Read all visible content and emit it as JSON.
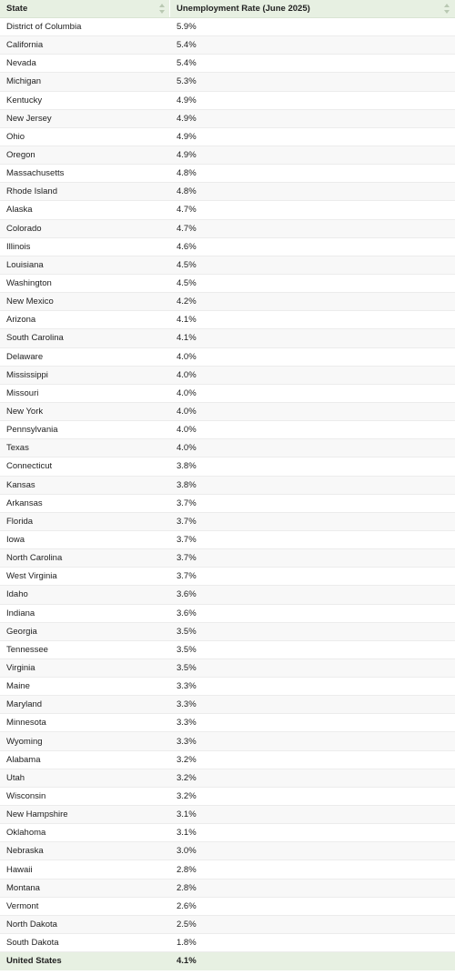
{
  "table": {
    "headers": {
      "state": "State",
      "rate": "Unemployment Rate (June 2025)"
    },
    "rows": [
      {
        "state": "District of Columbia",
        "rate": "5.9%"
      },
      {
        "state": "California",
        "rate": "5.4%"
      },
      {
        "state": "Nevada",
        "rate": "5.4%"
      },
      {
        "state": "Michigan",
        "rate": "5.3%"
      },
      {
        "state": "Kentucky",
        "rate": "4.9%"
      },
      {
        "state": "New Jersey",
        "rate": "4.9%"
      },
      {
        "state": "Ohio",
        "rate": "4.9%"
      },
      {
        "state": "Oregon",
        "rate": "4.9%"
      },
      {
        "state": "Massachusetts",
        "rate": "4.8%"
      },
      {
        "state": "Rhode Island",
        "rate": "4.8%"
      },
      {
        "state": "Alaska",
        "rate": "4.7%"
      },
      {
        "state": "Colorado",
        "rate": "4.7%"
      },
      {
        "state": "Illinois",
        "rate": "4.6%"
      },
      {
        "state": "Louisiana",
        "rate": "4.5%"
      },
      {
        "state": "Washington",
        "rate": "4.5%"
      },
      {
        "state": "New Mexico",
        "rate": "4.2%"
      },
      {
        "state": "Arizona",
        "rate": "4.1%"
      },
      {
        "state": "South Carolina",
        "rate": "4.1%"
      },
      {
        "state": "Delaware",
        "rate": "4.0%"
      },
      {
        "state": "Mississippi",
        "rate": "4.0%"
      },
      {
        "state": "Missouri",
        "rate": "4.0%"
      },
      {
        "state": "New York",
        "rate": "4.0%"
      },
      {
        "state": "Pennsylvania",
        "rate": "4.0%"
      },
      {
        "state": "Texas",
        "rate": "4.0%"
      },
      {
        "state": "Connecticut",
        "rate": "3.8%"
      },
      {
        "state": "Kansas",
        "rate": "3.8%"
      },
      {
        "state": "Arkansas",
        "rate": "3.7%"
      },
      {
        "state": "Florida",
        "rate": "3.7%"
      },
      {
        "state": "Iowa",
        "rate": "3.7%"
      },
      {
        "state": "North Carolina",
        "rate": "3.7%"
      },
      {
        "state": "West Virginia",
        "rate": "3.7%"
      },
      {
        "state": "Idaho",
        "rate": "3.6%"
      },
      {
        "state": "Indiana",
        "rate": "3.6%"
      },
      {
        "state": "Georgia",
        "rate": "3.5%"
      },
      {
        "state": "Tennessee",
        "rate": "3.5%"
      },
      {
        "state": "Virginia",
        "rate": "3.5%"
      },
      {
        "state": "Maine",
        "rate": "3.3%"
      },
      {
        "state": "Maryland",
        "rate": "3.3%"
      },
      {
        "state": "Minnesota",
        "rate": "3.3%"
      },
      {
        "state": "Wyoming",
        "rate": "3.3%"
      },
      {
        "state": "Alabama",
        "rate": "3.2%"
      },
      {
        "state": "Utah",
        "rate": "3.2%"
      },
      {
        "state": "Wisconsin",
        "rate": "3.2%"
      },
      {
        "state": "New Hampshire",
        "rate": "3.1%"
      },
      {
        "state": "Oklahoma",
        "rate": "3.1%"
      },
      {
        "state": "Nebraska",
        "rate": "3.0%"
      },
      {
        "state": "Hawaii",
        "rate": "2.8%"
      },
      {
        "state": "Montana",
        "rate": "2.8%"
      },
      {
        "state": "Vermont",
        "rate": "2.6%"
      },
      {
        "state": "North Dakota",
        "rate": "2.5%"
      },
      {
        "state": "South Dakota",
        "rate": "1.8%"
      }
    ],
    "footer": {
      "state": "United States",
      "rate": "4.1%"
    }
  },
  "icons": {
    "sort": "sort-arrows-icon"
  },
  "colors": {
    "header_bg": "#e7f0e2",
    "stripe_bg": "#f8f8f8",
    "text": "#222222"
  }
}
